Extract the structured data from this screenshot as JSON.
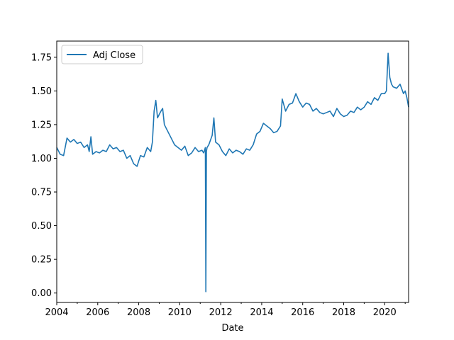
{
  "chart_data": {
    "type": "line",
    "title": "",
    "xlabel": "Date",
    "ylabel": "",
    "xlim": [
      "2004-01",
      "2021-03"
    ],
    "ylim": [
      -0.07,
      1.87
    ],
    "x_ticks": [
      "2004",
      "2006",
      "2008",
      "2010",
      "2012",
      "2014",
      "2016",
      "2018",
      "2020"
    ],
    "y_ticks": [
      "0.00",
      "0.25",
      "0.50",
      "0.75",
      "1.00",
      "1.25",
      "1.50",
      "1.75"
    ],
    "grid": false,
    "legend": {
      "position": "top-left",
      "entries": [
        "Adj Close"
      ]
    },
    "series": [
      {
        "name": "Adj Close",
        "color": "#1f77b4",
        "x": [
          "2004-01",
          "2004-03",
          "2004-05",
          "2004-07",
          "2004-09",
          "2004-11",
          "2005-01",
          "2005-03",
          "2005-05",
          "2005-07",
          "2005-08",
          "2005-09",
          "2005-10",
          "2005-12",
          "2006-02",
          "2006-04",
          "2006-06",
          "2006-08",
          "2006-10",
          "2006-12",
          "2007-02",
          "2007-04",
          "2007-06",
          "2007-08",
          "2007-10",
          "2007-12",
          "2008-02",
          "2008-04",
          "2008-06",
          "2008-08",
          "2008-09",
          "2008-10",
          "2008-11",
          "2008-12",
          "2009-02",
          "2009-03",
          "2009-04",
          "2009-06",
          "2009-08",
          "2009-10",
          "2009-12",
          "2010-02",
          "2010-04",
          "2010-06",
          "2010-08",
          "2010-10",
          "2010-12",
          "2011-02",
          "2011-03",
          "2011-04",
          "2011-04-10",
          "2011-04-20",
          "2011-05",
          "2011-06",
          "2011-08",
          "2011-09",
          "2011-10",
          "2011-12",
          "2012-02",
          "2012-04",
          "2012-06",
          "2012-08",
          "2012-10",
          "2012-12",
          "2013-02",
          "2013-04",
          "2013-06",
          "2013-08",
          "2013-10",
          "2013-12",
          "2014-02",
          "2014-04",
          "2014-06",
          "2014-08",
          "2014-10",
          "2014-12",
          "2015-01",
          "2015-03",
          "2015-05",
          "2015-07",
          "2015-09",
          "2015-11",
          "2016-01",
          "2016-03",
          "2016-05",
          "2016-07",
          "2016-09",
          "2016-11",
          "2017-01",
          "2017-03",
          "2017-05",
          "2017-07",
          "2017-09",
          "2017-11",
          "2018-01",
          "2018-03",
          "2018-05",
          "2018-07",
          "2018-09",
          "2018-11",
          "2019-01",
          "2019-03",
          "2019-05",
          "2019-07",
          "2019-09",
          "2019-11",
          "2020-01",
          "2020-02",
          "2020-03",
          "2020-04",
          "2020-05",
          "2020-06",
          "2020-08",
          "2020-10",
          "2020-12",
          "2021-01",
          "2021-02",
          "2021-03"
        ],
        "y": [
          1.08,
          1.03,
          1.02,
          1.15,
          1.12,
          1.14,
          1.11,
          1.12,
          1.08,
          1.1,
          1.05,
          1.16,
          1.03,
          1.05,
          1.04,
          1.06,
          1.05,
          1.1,
          1.07,
          1.08,
          1.05,
          1.06,
          1.0,
          1.02,
          0.96,
          0.94,
          1.02,
          1.01,
          1.08,
          1.05,
          1.12,
          1.35,
          1.43,
          1.3,
          1.35,
          1.37,
          1.25,
          1.2,
          1.15,
          1.1,
          1.08,
          1.06,
          1.09,
          1.02,
          1.04,
          1.08,
          1.05,
          1.06,
          1.04,
          1.08,
          0.01,
          1.05,
          1.08,
          1.1,
          1.17,
          1.3,
          1.12,
          1.1,
          1.05,
          1.02,
          1.07,
          1.04,
          1.06,
          1.05,
          1.03,
          1.07,
          1.06,
          1.1,
          1.18,
          1.2,
          1.26,
          1.24,
          1.22,
          1.19,
          1.2,
          1.24,
          1.44,
          1.35,
          1.4,
          1.41,
          1.48,
          1.42,
          1.38,
          1.41,
          1.4,
          1.35,
          1.37,
          1.34,
          1.33,
          1.34,
          1.35,
          1.31,
          1.37,
          1.33,
          1.31,
          1.32,
          1.35,
          1.34,
          1.38,
          1.36,
          1.38,
          1.42,
          1.4,
          1.45,
          1.43,
          1.48,
          1.48,
          1.5,
          1.78,
          1.6,
          1.55,
          1.53,
          1.52,
          1.55,
          1.48,
          1.5,
          1.45,
          1.38
        ]
      }
    ]
  }
}
